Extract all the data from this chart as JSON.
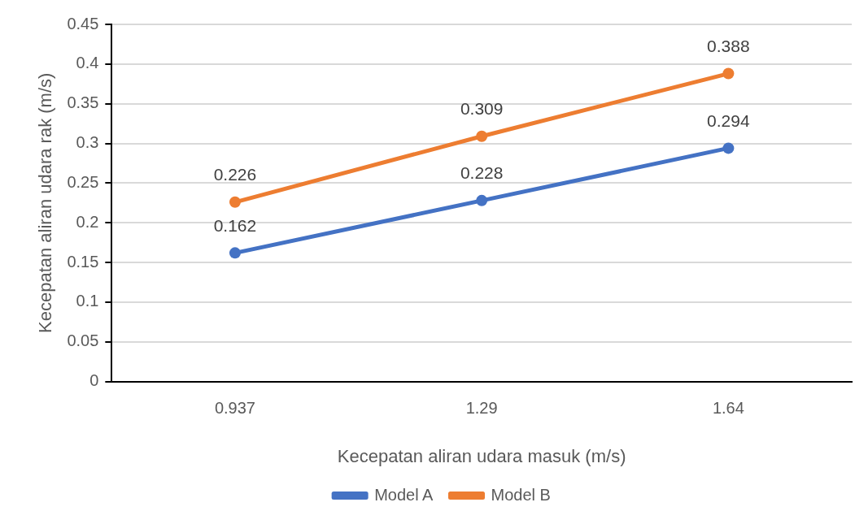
{
  "chart_data": {
    "type": "line",
    "xlabel": "Kecepatan aliran udara masuk (m/s)",
    "ylabel": "Kecepatan aliran udara rak (m/s)",
    "categories": [
      "0.937",
      "1.29",
      "1.64"
    ],
    "series": [
      {
        "name": "Model A",
        "color": "#4472c4",
        "values": [
          0.162,
          0.228,
          0.294
        ]
      },
      {
        "name": "Model B",
        "color": "#ed7d31",
        "values": [
          0.226,
          0.309,
          0.388
        ]
      }
    ],
    "ylim": [
      0,
      0.45
    ],
    "yticks": [
      0,
      0.05,
      0.1,
      0.15,
      0.2,
      0.25,
      0.3,
      0.35,
      0.4,
      0.45
    ],
    "grid": "y",
    "legend": "bottom",
    "marker": "circle",
    "line_style": "solid",
    "data_labels": true
  }
}
